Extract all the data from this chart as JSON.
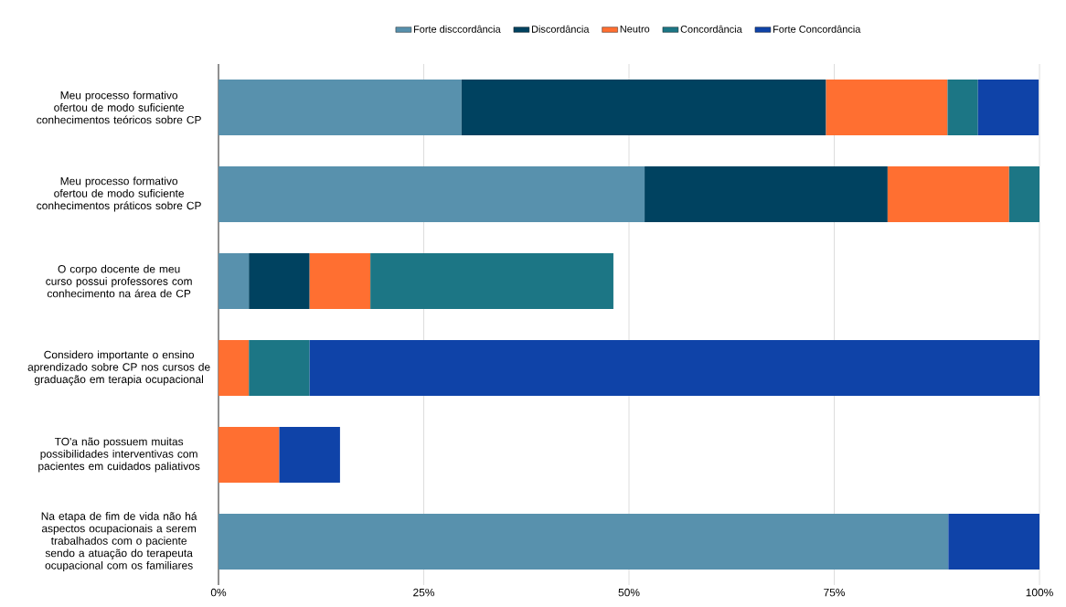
{
  "chart_data": {
    "type": "bar",
    "orientation": "horizontal",
    "stacked": true,
    "categories": [
      "Meu processo formativo ofertou de modo suficiente conhecimentos teóricos sobre CP",
      "Meu processo formativo ofertou de modo suficiente conhecimentos práticos sobre CP",
      "O corpo docente de meu curso possui professores com conhecimento na área de CP",
      "Considero importante o ensino aprendizado sobre CP nos cursos de graduação em terapia ocupacional",
      "TO'a não possuem muitas possibilidades interventivas com pacientes em cuidados paliativos",
      "Na etapa de fim de vida não há aspectos ocupacionais a serem trabalhados com o paciente sendo a atuação do terapeuta ocupacional com os familiares"
    ],
    "series": [
      {
        "name": "Forte disccordância",
        "color": "#5891ad",
        "values": [
          29.6,
          51.9,
          3.7,
          null,
          null,
          88.9
        ]
      },
      {
        "name": "Discordância",
        "color": "#004260",
        "values": [
          44.4,
          29.6,
          7.4,
          null,
          null,
          null
        ]
      },
      {
        "name": "Neutro",
        "color": "#ff6f31",
        "values": [
          14.8,
          14.8,
          7.4,
          3.7,
          7.4,
          null
        ]
      },
      {
        "name": "Concordância",
        "color": "#1c7685",
        "values": [
          3.7,
          3.7,
          29.6,
          7.4,
          null,
          null
        ]
      },
      {
        "name": "Forte Concordância",
        "color": "#0f43a8",
        "values": [
          7.4,
          null,
          null,
          88.9,
          7.4,
          11.1
        ]
      }
    ],
    "xlim": [
      0,
      100
    ],
    "xticks": [
      {
        "value": 0,
        "label": "0%"
      },
      {
        "value": 25,
        "label": "25%"
      },
      {
        "value": 50,
        "label": "50%"
      },
      {
        "value": 75,
        "label": "75%"
      },
      {
        "value": 100,
        "label": "100%"
      }
    ],
    "grid": "x",
    "legend": "top"
  }
}
